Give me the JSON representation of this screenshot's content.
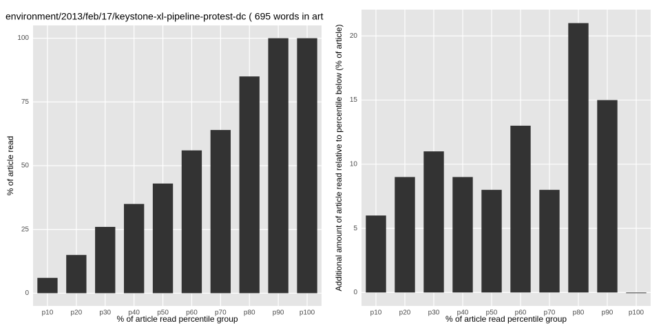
{
  "chart_data": [
    {
      "type": "bar",
      "title": "environment/2013/feb/17/keystone-xl-pipeline-protest-dc ( 695 words in art",
      "x_label": "% of article read percentile group",
      "y_label": "% of article read",
      "categories": [
        "p10",
        "p20",
        "p30",
        "p40",
        "p50",
        "p60",
        "p70",
        "p80",
        "p90",
        "p100"
      ],
      "values": [
        6,
        15,
        26,
        35,
        43,
        56,
        64,
        85,
        100,
        100
      ],
      "color": "#333333",
      "ylim": [
        -5,
        105
      ],
      "yticks": [
        0,
        25,
        50,
        75,
        100
      ],
      "grid": true
    },
    {
      "type": "bar",
      "x_label": "% of article read percentile group",
      "y_label": "Additional amount of article read relative to percentile below (% of article)",
      "categories": [
        "p10",
        "p20",
        "p30",
        "p40",
        "p50",
        "p60",
        "p70",
        "p80",
        "p90",
        "p100"
      ],
      "values": [
        6,
        9,
        11,
        9,
        8,
        13,
        8,
        21,
        15,
        0
      ],
      "color": "#333333",
      "ylim": [
        -1.05,
        22.05
      ],
      "yticks": [
        0,
        5,
        10,
        15,
        20
      ],
      "grid": true
    }
  ]
}
